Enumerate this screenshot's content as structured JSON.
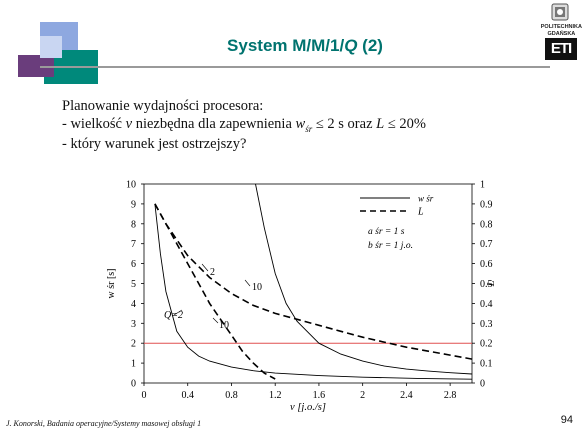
{
  "slide": {
    "title_parts": [
      "System M/M/1/",
      "Q",
      " (2)"
    ],
    "intro": "Planowanie wydajności procesora:",
    "bullet1_parts": [
      "- wielkość ",
      "v",
      " niezbędna dla zapewnienia ",
      "w",
      "śr",
      " ≤ 2 s oraz ",
      "L",
      " ≤ 20%"
    ],
    "bullet2": "- który warunek jest ostrzejszy?",
    "footer": "J. Konorski, Badania operacyjne/Systemy masowej obsługi 1",
    "page_number": "94",
    "logo_caption_lines": [
      "POLITECHNIKA",
      "GDAŃSKA"
    ],
    "logo_letters": "ETI"
  },
  "colors": {
    "title": "#00736f",
    "threshold_line": "#e05050",
    "decor_teal": "#00897b",
    "decor_purple": "#6a3d7c",
    "decor_blue": "#8ea8e0"
  },
  "chart_data": {
    "type": "line",
    "xlabel_parts": [
      "v",
      " [j.o./s]"
    ],
    "ylabel_left_parts": [
      "w",
      " śr",
      " [s]"
    ],
    "ylabel_right": "L",
    "x_ticks": [
      "0",
      "0.4",
      "0.8",
      "1.2",
      "1.6",
      "2",
      "2.4",
      "2.8"
    ],
    "x_tick_values": [
      0,
      0.4,
      0.8,
      1.2,
      1.6,
      2,
      2.4,
      2.8
    ],
    "y_left_ticks": [
      "0",
      "1",
      "2",
      "3",
      "4",
      "5",
      "6",
      "7",
      "8",
      "9",
      "10"
    ],
    "y_right_ticks": [
      "0",
      "0.1",
      "0.2",
      "0.3",
      "0.4",
      "0.5",
      "0.6",
      "0.7",
      "0.8",
      "0.9",
      "1"
    ],
    "xlim": [
      0,
      3
    ],
    "ylim_left": [
      0,
      10
    ],
    "ylim_right": [
      0,
      1
    ],
    "legend": [
      {
        "label": "w śr",
        "style": "solid"
      },
      {
        "label": "L",
        "style": "dashed"
      }
    ],
    "params": [
      "a śr = 1 s",
      "b śr = 1 j.o."
    ],
    "annotations": [
      "Q=2",
      "2",
      "10",
      "10"
    ],
    "threshold": {
      "axis": "left",
      "value": 2
    },
    "series": [
      {
        "style": "solid",
        "axis": "left",
        "x": [
          0.1,
          0.15,
          0.2,
          0.3,
          0.4,
          0.5,
          0.6,
          0.8,
          1.0,
          1.2,
          1.6,
          2.0,
          2.5,
          3.0
        ],
        "y": [
          9.0,
          6.5,
          4.6,
          2.6,
          1.8,
          1.35,
          1.1,
          0.8,
          0.62,
          0.5,
          0.37,
          0.29,
          0.23,
          0.19
        ]
      },
      {
        "style": "solid",
        "axis": "left",
        "x": [
          1.02,
          1.1,
          1.2,
          1.3,
          1.4,
          1.6,
          1.8,
          2.0,
          2.2,
          2.4,
          2.6,
          2.8,
          3.0
        ],
        "y": [
          10.0,
          7.8,
          5.5,
          4.0,
          3.1,
          2.0,
          1.45,
          1.1,
          0.85,
          0.7,
          0.6,
          0.52,
          0.45
        ]
      },
      {
        "style": "dashed",
        "axis": "right",
        "x": [
          0.1,
          0.2,
          0.4,
          0.6,
          0.8,
          1.0,
          1.2,
          1.4,
          1.6,
          1.8,
          2.0,
          2.4,
          2.8,
          3.0
        ],
        "y": [
          0.9,
          0.8,
          0.64,
          0.53,
          0.45,
          0.39,
          0.35,
          0.32,
          0.29,
          0.26,
          0.23,
          0.18,
          0.14,
          0.12
        ]
      },
      {
        "style": "dashed",
        "axis": "right",
        "x": [
          0.1,
          0.2,
          0.3,
          0.4,
          0.5,
          0.6,
          0.7,
          0.8,
          0.9,
          1.0,
          1.1,
          1.2
        ],
        "y": [
          0.9,
          0.8,
          0.7,
          0.6,
          0.5,
          0.4,
          0.32,
          0.24,
          0.16,
          0.1,
          0.05,
          0.02
        ]
      }
    ]
  }
}
